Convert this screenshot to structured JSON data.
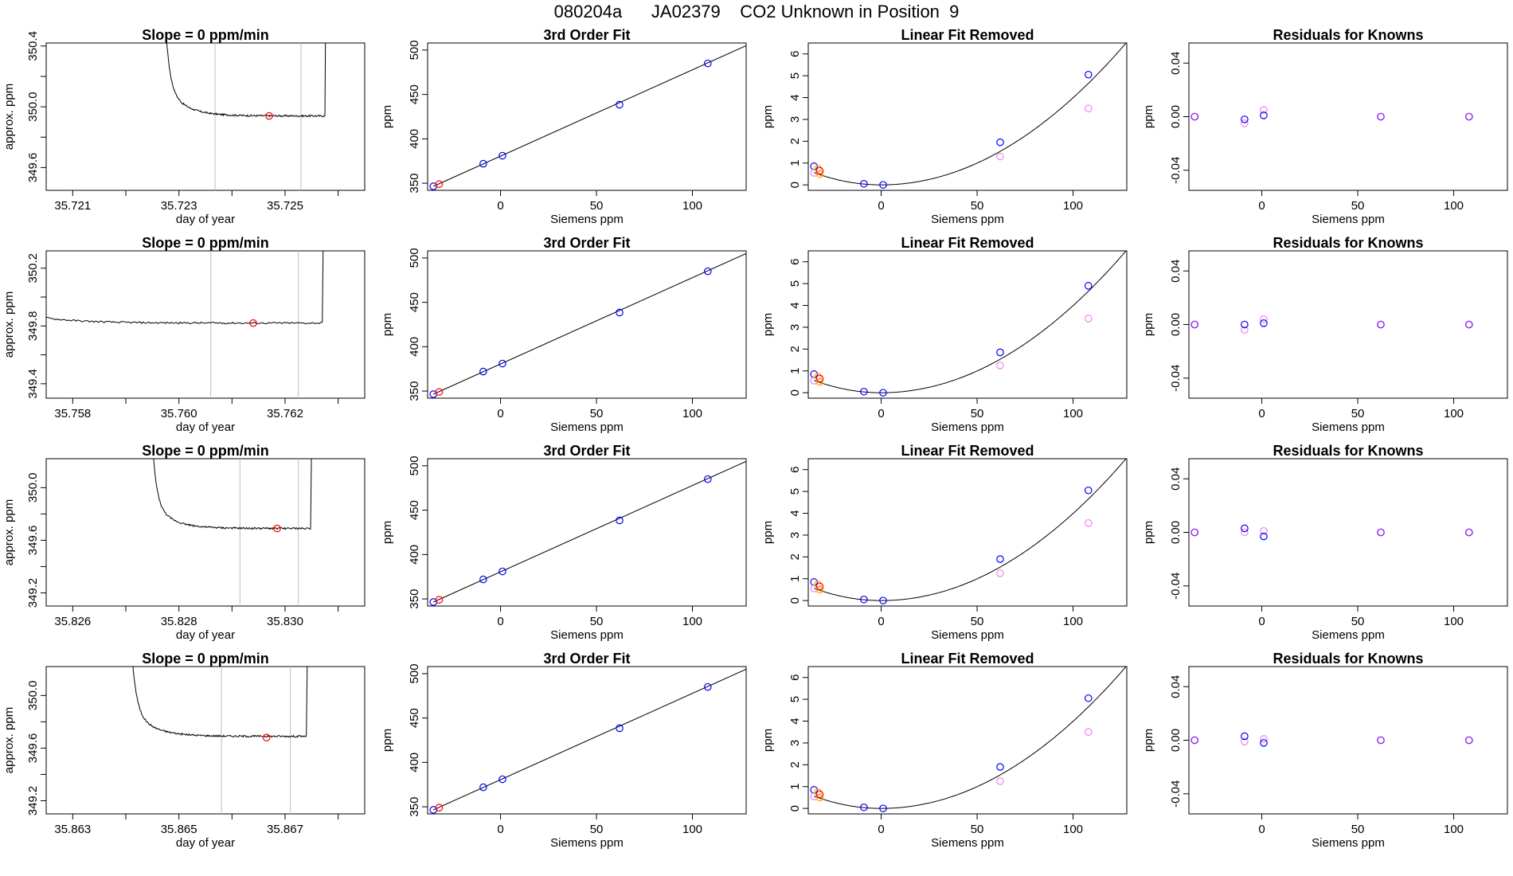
{
  "title": "080204a      JA02379    CO2 Unknown in Position  9",
  "colors": {
    "axis": "#000000",
    "line": "#000000",
    "vline": "#bebebe",
    "red": "#ff0000",
    "blue": "#0000ff",
    "orange": "#ffa500",
    "magenta": "#ee82ee",
    "purple": "#a020f0"
  },
  "chart_data": [
    {
      "type": "line",
      "panel": "timeseries",
      "row": 1,
      "title": "Slope =  0  ppm/min",
      "xlabel": "day of year",
      "ylabel": "approx. ppm",
      "xlim": [
        35.7205,
        35.7265
      ],
      "ylim": [
        349.45,
        350.42
      ],
      "xticks": [
        "35.721",
        "35.723",
        "35.725"
      ],
      "xtick_values": [
        35.721,
        35.723,
        35.725
      ],
      "xminor": [
        35.722,
        35.724,
        35.726
      ],
      "yticks": [
        "349.6",
        "350.0",
        "350.4"
      ],
      "ytick_values": [
        349.6,
        350.0,
        350.4
      ],
      "yminor": [
        349.8,
        350.2
      ],
      "series": {
        "x_start": 35.72265,
        "x_end": 35.72578,
        "plateau": 349.94,
        "start_level": 350.2,
        "rise_at": 35.72575
      },
      "vlines": [
        35.72368,
        35.7253
      ],
      "marker": {
        "x": 35.7247,
        "y": 349.94
      }
    },
    {
      "type": "scatter",
      "panel": "fit",
      "row": 1,
      "title": "3rd Order Fit",
      "xlabel": "Siemens ppm",
      "ylabel": "ppm",
      "xlim": [
        -38,
        128
      ],
      "ylim": [
        342,
        508
      ],
      "xticks": [
        "0",
        "50",
        "100"
      ],
      "xtick_values": [
        0,
        50,
        100
      ],
      "yticks": [
        "350",
        "400",
        "450",
        "500"
      ],
      "ytick_values": [
        350,
        400,
        450,
        500
      ],
      "fit_line": {
        "x": [
          -35,
          128
        ],
        "y": [
          346.5,
          505
        ]
      },
      "points_blue": [
        [
          -35,
          346.5
        ],
        [
          -9,
          372
        ],
        [
          1,
          381
        ],
        [
          62,
          438.5
        ],
        [
          108,
          485
        ]
      ],
      "points_red": [
        [
          -32,
          349
        ]
      ]
    },
    {
      "type": "scatter",
      "panel": "linear",
      "row": 1,
      "title": "Linear Fit Removed",
      "xlabel": "Siemens ppm",
      "ylabel": "ppm",
      "xlim": [
        -38,
        128
      ],
      "ylim": [
        -0.25,
        6.5
      ],
      "xticks": [
        "0",
        "50",
        "100"
      ],
      "xtick_values": [
        0,
        50,
        100
      ],
      "yticks": [
        "0",
        "1",
        "2",
        "3",
        "4",
        "5",
        "6"
      ],
      "ytick_values": [
        0,
        1,
        2,
        3,
        4,
        5,
        6
      ],
      "curve": {
        "a": 0.0003,
        "b": -0.0001,
        "c": -0.0001
      },
      "points_blue": [
        [
          -35,
          0.85
        ],
        [
          -9,
          0.05
        ],
        [
          1,
          0.0
        ],
        [
          62,
          1.95
        ],
        [
          108,
          5.05
        ]
      ],
      "points_orange": [
        [
          -33,
          0.75
        ],
        [
          -32,
          0.5
        ]
      ],
      "points_magenta": [
        [
          -35,
          0.55
        ],
        [
          62,
          1.3
        ],
        [
          108,
          3.5
        ]
      ],
      "points_red": [
        [
          -32,
          0.65
        ]
      ]
    },
    {
      "type": "scatter",
      "panel": "residual",
      "row": 1,
      "title": "Residuals for Knowns",
      "xlabel": "Siemens ppm",
      "ylabel": "ppm",
      "xlim": [
        -38,
        128
      ],
      "ylim": [
        -0.055,
        0.055
      ],
      "xticks": [
        "0",
        "50",
        "100"
      ],
      "xtick_values": [
        0,
        50,
        100
      ],
      "yticks": [
        "-0.04",
        "0.00",
        "0.04"
      ],
      "ytick_values": [
        -0.04,
        0.0,
        0.04
      ],
      "points_blue": [
        [
          -35,
          0.0
        ],
        [
          -9,
          -0.002
        ],
        [
          1,
          0.001
        ],
        [
          62,
          0.0
        ],
        [
          108,
          0.0
        ]
      ],
      "points_magenta": [
        [
          -9,
          -0.005
        ],
        [
          1,
          0.005
        ]
      ],
      "points_purple": [
        [
          -35,
          0.0
        ],
        [
          62,
          0.0
        ],
        [
          108,
          0.0
        ]
      ]
    },
    {
      "type": "line",
      "panel": "timeseries",
      "row": 2,
      "title": "Slope =  0  ppm/min",
      "xlabel": "day of year",
      "ylabel": "approx. ppm",
      "xlim": [
        35.7575,
        35.7635
      ],
      "ylim": [
        349.3,
        350.32
      ],
      "xticks": [
        "35.758",
        "35.760",
        "35.762"
      ],
      "xtick_values": [
        35.758,
        35.76,
        35.762
      ],
      "xminor": [
        35.759,
        35.761,
        35.763
      ],
      "yticks": [
        "349.4",
        "349.8",
        "350.2"
      ],
      "ytick_values": [
        349.4,
        349.8,
        350.2
      ],
      "yminor": [
        349.6,
        350.0
      ],
      "series": {
        "x_start": 35.75595,
        "x_end": 35.76275,
        "plateau": 349.82,
        "start_level": 350.1,
        "rise_at": 35.7627
      },
      "vlines": [
        35.7606,
        35.76225
      ],
      "marker": {
        "x": 35.7614,
        "y": 349.82
      }
    },
    {
      "type": "scatter",
      "panel": "fit",
      "row": 2,
      "title": "3rd Order Fit",
      "xlabel": "Siemens ppm",
      "ylabel": "ppm",
      "xlim": [
        -38,
        128
      ],
      "ylim": [
        342,
        508
      ],
      "xticks": [
        "0",
        "50",
        "100"
      ],
      "xtick_values": [
        0,
        50,
        100
      ],
      "yticks": [
        "350",
        "400",
        "450",
        "500"
      ],
      "ytick_values": [
        350,
        400,
        450,
        500
      ],
      "fit_line": {
        "x": [
          -35,
          128
        ],
        "y": [
          346.5,
          505
        ]
      },
      "points_blue": [
        [
          -35,
          346.5
        ],
        [
          -9,
          372
        ],
        [
          1,
          381
        ],
        [
          62,
          438.5
        ],
        [
          108,
          485
        ]
      ],
      "points_red": [
        [
          -32,
          349
        ]
      ]
    },
    {
      "type": "scatter",
      "panel": "linear",
      "row": 2,
      "title": "Linear Fit Removed",
      "xlabel": "Siemens ppm",
      "ylabel": "ppm",
      "xlim": [
        -38,
        128
      ],
      "ylim": [
        -0.25,
        6.5
      ],
      "xticks": [
        "0",
        "50",
        "100"
      ],
      "xtick_values": [
        0,
        50,
        100
      ],
      "yticks": [
        "0",
        "1",
        "2",
        "3",
        "4",
        "5",
        "6"
      ],
      "ytick_values": [
        0,
        1,
        2,
        3,
        4,
        5,
        6
      ],
      "curve": {
        "a": 0.0003,
        "b": -0.0001,
        "c": -0.0001
      },
      "points_blue": [
        [
          -35,
          0.85
        ],
        [
          -9,
          0.05
        ],
        [
          1,
          0.0
        ],
        [
          62,
          1.85
        ],
        [
          108,
          4.9
        ]
      ],
      "points_orange": [
        [
          -33,
          0.75
        ],
        [
          -32,
          0.5
        ]
      ],
      "points_magenta": [
        [
          -35,
          0.55
        ],
        [
          62,
          1.25
        ],
        [
          108,
          3.4
        ]
      ],
      "points_red": [
        [
          -32,
          0.65
        ]
      ]
    },
    {
      "type": "scatter",
      "panel": "residual",
      "row": 2,
      "title": "Residuals for Knowns",
      "xlabel": "Siemens ppm",
      "ylabel": "ppm",
      "xlim": [
        -38,
        128
      ],
      "ylim": [
        -0.055,
        0.055
      ],
      "xticks": [
        "0",
        "50",
        "100"
      ],
      "xtick_values": [
        0,
        50,
        100
      ],
      "yticks": [
        "-0.04",
        "0.00",
        "0.04"
      ],
      "ytick_values": [
        -0.04,
        0.0,
        0.04
      ],
      "points_blue": [
        [
          -35,
          0.0
        ],
        [
          -9,
          0.0
        ],
        [
          1,
          0.001
        ],
        [
          62,
          0.0
        ],
        [
          108,
          0.0
        ]
      ],
      "points_magenta": [
        [
          -9,
          -0.004
        ],
        [
          1,
          0.004
        ]
      ],
      "points_purple": [
        [
          -35,
          0.0
        ],
        [
          62,
          0.0
        ],
        [
          108,
          0.0
        ]
      ]
    },
    {
      "type": "line",
      "panel": "timeseries",
      "row": 3,
      "title": "Slope =  0  ppm/min",
      "xlabel": "day of year",
      "ylabel": "approx. ppm",
      "xlim": [
        35.8255,
        35.8315
      ],
      "ylim": [
        349.1,
        350.22
      ],
      "xticks": [
        "35.826",
        "35.828",
        "35.830"
      ],
      "xtick_values": [
        35.826,
        35.828,
        35.83
      ],
      "xminor": [
        35.827,
        35.829,
        35.831
      ],
      "yticks": [
        "349.2",
        "349.6",
        "350.0"
      ],
      "ytick_values": [
        349.2,
        349.6,
        350.0
      ],
      "yminor": [
        349.4,
        349.8
      ],
      "series": {
        "x_start": 35.8274,
        "x_end": 35.83053,
        "plateau": 349.69,
        "start_level": 349.96,
        "rise_at": 35.83048
      },
      "vlines": [
        35.82915,
        35.83025
      ],
      "marker": {
        "x": 35.82985,
        "y": 349.69
      }
    },
    {
      "type": "scatter",
      "panel": "fit",
      "row": 3,
      "title": "3rd Order Fit",
      "xlabel": "Siemens ppm",
      "ylabel": "ppm",
      "xlim": [
        -38,
        128
      ],
      "ylim": [
        342,
        508
      ],
      "xticks": [
        "0",
        "50",
        "100"
      ],
      "xtick_values": [
        0,
        50,
        100
      ],
      "yticks": [
        "350",
        "400",
        "450",
        "500"
      ],
      "ytick_values": [
        350,
        400,
        450,
        500
      ],
      "fit_line": {
        "x": [
          -35,
          128
        ],
        "y": [
          346.5,
          505
        ]
      },
      "points_blue": [
        [
          -35,
          346.5
        ],
        [
          -9,
          372
        ],
        [
          1,
          381
        ],
        [
          62,
          438.5
        ],
        [
          108,
          485
        ]
      ],
      "points_red": [
        [
          -32,
          349
        ]
      ]
    },
    {
      "type": "scatter",
      "panel": "linear",
      "row": 3,
      "title": "Linear Fit Removed",
      "xlabel": "Siemens ppm",
      "ylabel": "ppm",
      "xlim": [
        -38,
        128
      ],
      "ylim": [
        -0.25,
        6.5
      ],
      "xticks": [
        "0",
        "50",
        "100"
      ],
      "xtick_values": [
        0,
        50,
        100
      ],
      "yticks": [
        "0",
        "1",
        "2",
        "3",
        "4",
        "5",
        "6"
      ],
      "ytick_values": [
        0,
        1,
        2,
        3,
        4,
        5,
        6
      ],
      "curve": {
        "a": 0.0003,
        "b": -0.0001,
        "c": -0.0001
      },
      "points_blue": [
        [
          -35,
          0.85
        ],
        [
          -9,
          0.05
        ],
        [
          1,
          0.0
        ],
        [
          62,
          1.9
        ],
        [
          108,
          5.05
        ]
      ],
      "points_orange": [
        [
          -33,
          0.75
        ],
        [
          -32,
          0.5
        ]
      ],
      "points_magenta": [
        [
          -35,
          0.55
        ],
        [
          62,
          1.25
        ],
        [
          108,
          3.55
        ]
      ],
      "points_red": [
        [
          -32,
          0.65
        ]
      ]
    },
    {
      "type": "scatter",
      "panel": "residual",
      "row": 3,
      "title": "Residuals for Knowns",
      "xlabel": "Siemens ppm",
      "ylabel": "ppm",
      "xlim": [
        -38,
        128
      ],
      "ylim": [
        -0.055,
        0.055
      ],
      "xticks": [
        "0",
        "50",
        "100"
      ],
      "xtick_values": [
        0,
        50,
        100
      ],
      "yticks": [
        "-0.04",
        "0.00",
        "0.04"
      ],
      "ytick_values": [
        -0.04,
        0.0,
        0.04
      ],
      "points_blue": [
        [
          -35,
          0.0
        ],
        [
          -9,
          0.003
        ],
        [
          1,
          -0.003
        ],
        [
          62,
          0.0
        ],
        [
          108,
          0.0
        ]
      ],
      "points_magenta": [
        [
          -9,
          0.0
        ],
        [
          1,
          0.001
        ]
      ],
      "points_purple": [
        [
          -35,
          0.0
        ],
        [
          62,
          0.0
        ],
        [
          108,
          0.0
        ]
      ]
    },
    {
      "type": "line",
      "panel": "timeseries",
      "row": 4,
      "title": "Slope =  0  ppm/min",
      "xlabel": "day of year",
      "ylabel": "approx. ppm",
      "xlim": [
        35.8625,
        35.8685
      ],
      "ylim": [
        349.1,
        350.22
      ],
      "xticks": [
        "35.863",
        "35.865",
        "35.867"
      ],
      "xtick_values": [
        35.863,
        35.865,
        35.867
      ],
      "xminor": [
        35.864,
        35.866,
        35.868
      ],
      "yticks": [
        "349.2",
        "349.6",
        "350.0"
      ],
      "ytick_values": [
        349.2,
        349.6,
        350.0
      ],
      "yminor": [
        349.4,
        349.8
      ],
      "series": {
        "x_start": 35.864,
        "x_end": 35.86745,
        "plateau": 349.69,
        "start_level": 349.96,
        "rise_at": 35.8674
      },
      "vlines": [
        35.8658,
        35.8671
      ],
      "marker": {
        "x": 35.86665,
        "y": 349.68
      }
    },
    {
      "type": "scatter",
      "panel": "fit",
      "row": 4,
      "title": "3rd Order Fit",
      "xlabel": "Siemens ppm",
      "ylabel": "ppm",
      "xlim": [
        -38,
        128
      ],
      "ylim": [
        342,
        508
      ],
      "xticks": [
        "0",
        "50",
        "100"
      ],
      "xtick_values": [
        0,
        50,
        100
      ],
      "yticks": [
        "350",
        "400",
        "450",
        "500"
      ],
      "ytick_values": [
        350,
        400,
        450,
        500
      ],
      "fit_line": {
        "x": [
          -35,
          128
        ],
        "y": [
          346.5,
          505
        ]
      },
      "points_blue": [
        [
          -35,
          346.5
        ],
        [
          -9,
          372
        ],
        [
          1,
          381
        ],
        [
          62,
          438.5
        ],
        [
          108,
          485
        ]
      ],
      "points_red": [
        [
          -32,
          349
        ]
      ]
    },
    {
      "type": "scatter",
      "panel": "linear",
      "row": 4,
      "title": "Linear Fit Removed",
      "xlabel": "Siemens ppm",
      "ylabel": "ppm",
      "xlim": [
        -38,
        128
      ],
      "ylim": [
        -0.25,
        6.5
      ],
      "xticks": [
        "0",
        "50",
        "100"
      ],
      "xtick_values": [
        0,
        50,
        100
      ],
      "yticks": [
        "0",
        "1",
        "2",
        "3",
        "4",
        "5",
        "6"
      ],
      "ytick_values": [
        0,
        1,
        2,
        3,
        4,
        5,
        6
      ],
      "curve": {
        "a": 0.0003,
        "b": -0.0001,
        "c": -0.0001
      },
      "points_blue": [
        [
          -35,
          0.85
        ],
        [
          -9,
          0.05
        ],
        [
          1,
          0.0
        ],
        [
          62,
          1.9
        ],
        [
          108,
          5.05
        ]
      ],
      "points_orange": [
        [
          -33,
          0.75
        ],
        [
          -32,
          0.5
        ]
      ],
      "points_magenta": [
        [
          -35,
          0.55
        ],
        [
          62,
          1.25
        ],
        [
          108,
          3.5
        ]
      ],
      "points_red": [
        [
          -32,
          0.65
        ]
      ]
    },
    {
      "type": "scatter",
      "panel": "residual",
      "row": 4,
      "title": "Residuals for Knowns",
      "xlabel": "Siemens ppm",
      "ylabel": "ppm",
      "xlim": [
        -38,
        128
      ],
      "ylim": [
        -0.055,
        0.055
      ],
      "xticks": [
        "0",
        "50",
        "100"
      ],
      "xtick_values": [
        0,
        50,
        100
      ],
      "yticks": [
        "-0.04",
        "0.00",
        "0.04"
      ],
      "ytick_values": [
        -0.04,
        0.0,
        0.04
      ],
      "points_blue": [
        [
          -35,
          0.0
        ],
        [
          -9,
          0.003
        ],
        [
          1,
          -0.002
        ],
        [
          62,
          0.0
        ],
        [
          108,
          0.0
        ]
      ],
      "points_magenta": [
        [
          -9,
          -0.001
        ],
        [
          1,
          0.001
        ]
      ],
      "points_purple": [
        [
          -35,
          0.0
        ],
        [
          62,
          0.0
        ],
        [
          108,
          0.0
        ]
      ]
    }
  ]
}
